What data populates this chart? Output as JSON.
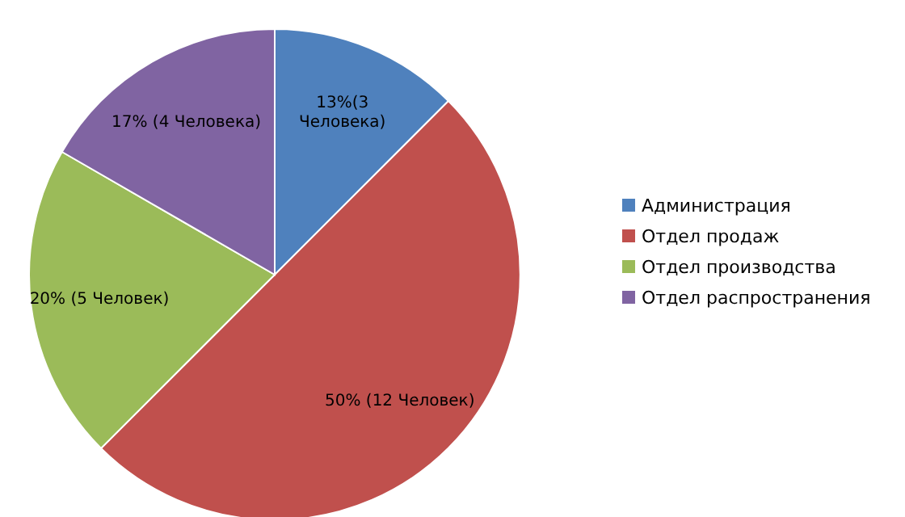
{
  "chart_data": {
    "type": "pie",
    "categories": [
      "Администрация",
      "Отдел продаж",
      "Отдел производства",
      "Отдел распространения"
    ],
    "values": [
      3,
      12,
      5,
      4
    ],
    "colors": [
      "#4f81bd",
      "#c0504d",
      "#9bbb59",
      "#8064a2"
    ],
    "value_labels": [
      "13%(3 Человека)",
      "50% (12 Человек)",
      "20% (5 Человек)",
      "17% (4 Человека)"
    ],
    "legend": "right"
  }
}
